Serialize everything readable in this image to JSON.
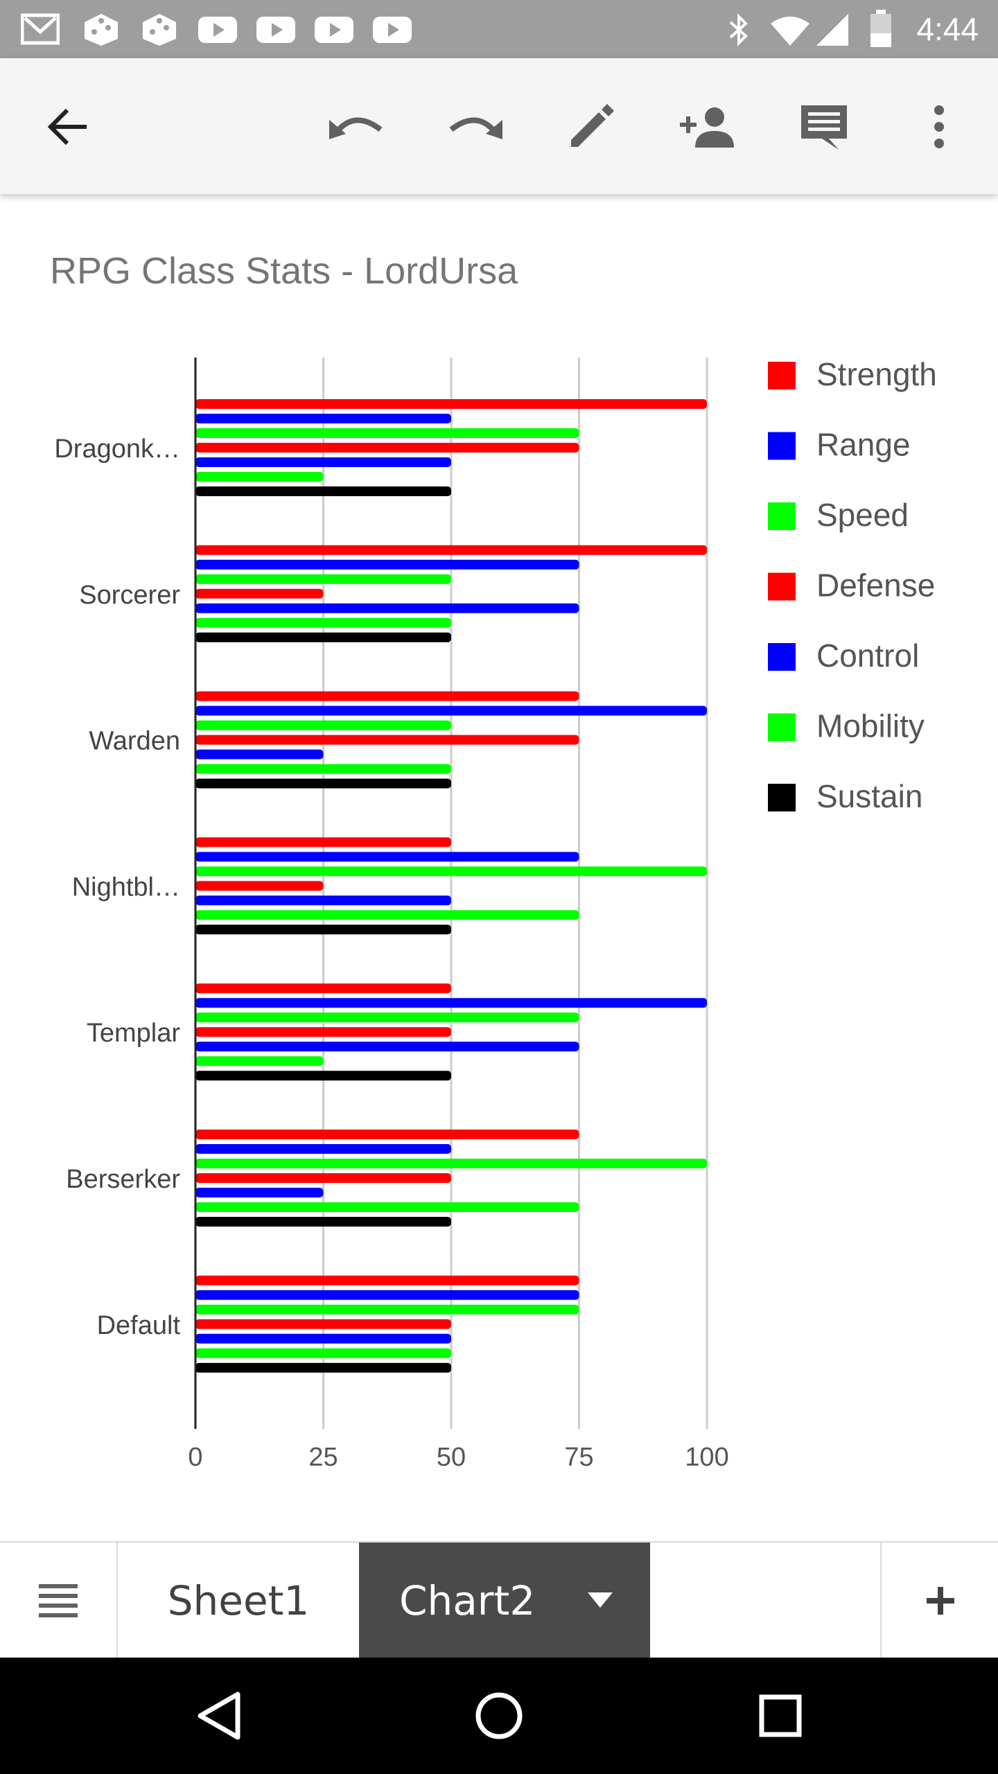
{
  "status_bar": {
    "time": "4:44",
    "notifications": [
      "gmail-icon",
      "dice-icon",
      "dice-icon",
      "youtube-icon",
      "youtube-icon",
      "youtube-icon",
      "youtube-icon"
    ],
    "system_icons": [
      "bluetooth-icon",
      "wifi-icon",
      "signal-icon",
      "battery-icon"
    ]
  },
  "toolbar": {
    "icons": [
      "back-arrow-icon",
      "undo-icon",
      "redo-icon",
      "edit-icon",
      "share-person-add-icon",
      "comment-icon",
      "more-vert-icon"
    ]
  },
  "chart_data": {
    "type": "bar",
    "orientation": "horizontal",
    "title": "RPG Class Stats - LordUrsa",
    "categories": [
      "Dragonk…",
      "Sorcerer",
      "Warden",
      "Nightbl…",
      "Templar",
      "Berserker",
      "Default"
    ],
    "series": [
      {
        "name": "Strength",
        "color": "#ff0000",
        "values": [
          100,
          100,
          75,
          50,
          50,
          75,
          75
        ]
      },
      {
        "name": "Range",
        "color": "#0000ff",
        "values": [
          50,
          75,
          100,
          75,
          100,
          50,
          75
        ]
      },
      {
        "name": "Speed",
        "color": "#00ff00",
        "values": [
          75,
          50,
          50,
          100,
          75,
          100,
          75
        ]
      },
      {
        "name": "Defense",
        "color": "#ff0000",
        "values": [
          75,
          25,
          75,
          25,
          50,
          50,
          50
        ]
      },
      {
        "name": "Control",
        "color": "#0000ff",
        "values": [
          50,
          75,
          25,
          50,
          75,
          25,
          50
        ]
      },
      {
        "name": "Mobility",
        "color": "#00ff00",
        "values": [
          25,
          50,
          50,
          75,
          25,
          75,
          50
        ]
      },
      {
        "name": "Sustain",
        "color": "#000000",
        "values": [
          50,
          50,
          50,
          50,
          50,
          50,
          50
        ]
      }
    ],
    "xlim": [
      0,
      100
    ],
    "xticks": [
      "0",
      "25",
      "50",
      "75",
      "100"
    ],
    "grid": true,
    "legend": "right"
  },
  "tabs": {
    "sheet1_label": "Sheet1",
    "chart2_label": "Chart2",
    "active": "Chart2"
  },
  "colors": {
    "status_bar": "#9e9e9e",
    "toolbar": "#f5f5f5",
    "active_tab": "#4a4a4a"
  }
}
